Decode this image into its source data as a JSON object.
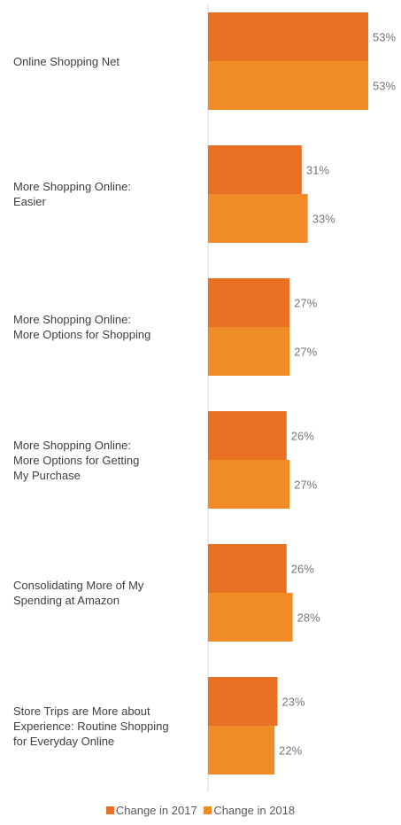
{
  "chart_data": {
    "type": "bar",
    "orientation": "horizontal",
    "categories": [
      "Online Shopping Net",
      "More Shopping Online:\nEasier",
      "More Shopping Online:\nMore Options for Shopping",
      "More Shopping Online:\nMore Options for Getting\nMy Purchase",
      "Consolidating More of My\nSpending at Amazon",
      "Store Trips are More about\nExperience: Routine Shopping\nfor Everyday Online"
    ],
    "series": [
      {
        "name": "Change in 2017",
        "color": "#E97126",
        "values": [
          53,
          31,
          27,
          26,
          26,
          23
        ],
        "labels": [
          "53%",
          "31%",
          "27%",
          "26%",
          "26%",
          "23%"
        ]
      },
      {
        "name": "Change in 2018",
        "color": "#F08C25",
        "values": [
          53,
          33,
          27,
          27,
          28,
          22
        ],
        "labels": [
          "53%",
          "33%",
          "27%",
          "27%",
          "28%",
          "22%"
        ]
      }
    ],
    "xlim": [
      0,
      53
    ],
    "grid": false,
    "legend_position": "bottom"
  }
}
